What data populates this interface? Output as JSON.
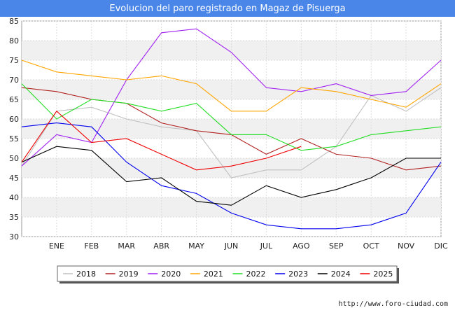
{
  "chart_data": {
    "type": "line",
    "title": "Evolucion del paro registrado en Magaz de Pisuerga",
    "categories": [
      "ENE",
      "FEB",
      "MAR",
      "ABR",
      "MAY",
      "JUN",
      "JUL",
      "AGO",
      "SEP",
      "OCT",
      "NOV",
      "DIC"
    ],
    "ylim": [
      30,
      85
    ],
    "yticks": [
      30,
      35,
      40,
      45,
      50,
      55,
      60,
      65,
      70,
      75,
      80,
      85
    ],
    "grid": true,
    "legend_position": "bottom",
    "series": [
      {
        "name": "2018",
        "color": "#c0c0c0",
        "start": 48,
        "values": [
          62,
          63,
          60,
          58,
          57,
          45,
          47,
          47,
          53,
          66,
          62,
          68
        ]
      },
      {
        "name": "2019",
        "color": "#b22222",
        "start": 68,
        "values": [
          67,
          65,
          64,
          59,
          57,
          56,
          51,
          55,
          51,
          50,
          47,
          48
        ]
      },
      {
        "name": "2020",
        "color": "#a020f0",
        "start": 48,
        "values": [
          56,
          54,
          70,
          82,
          83,
          77,
          68,
          67,
          69,
          66,
          67,
          75
        ]
      },
      {
        "name": "2021",
        "color": "#ffa500",
        "start": 75,
        "values": [
          72,
          71,
          70,
          71,
          69,
          62,
          62,
          68,
          67,
          65,
          63,
          69
        ]
      },
      {
        "name": "2022",
        "color": "#22dd22",
        "start": 69,
        "values": [
          60,
          65,
          64,
          62,
          64,
          56,
          56,
          52,
          53,
          56,
          57,
          58
        ]
      },
      {
        "name": "2023",
        "color": "#0000ee",
        "start": 58,
        "values": [
          59,
          58,
          49,
          43,
          41,
          36,
          33,
          32,
          32,
          33,
          36,
          49
        ]
      },
      {
        "name": "2024",
        "color": "#000000",
        "start": 49,
        "values": [
          53,
          52,
          44,
          45,
          39,
          38,
          43,
          40,
          42,
          45,
          50,
          50
        ]
      },
      {
        "name": "2025",
        "color": "#ee0000",
        "start": 49,
        "values": [
          62,
          54,
          55,
          51,
          47,
          48,
          50,
          53,
          null,
          null,
          null,
          null
        ]
      }
    ],
    "footer": "http://www.foro-ciudad.com"
  }
}
